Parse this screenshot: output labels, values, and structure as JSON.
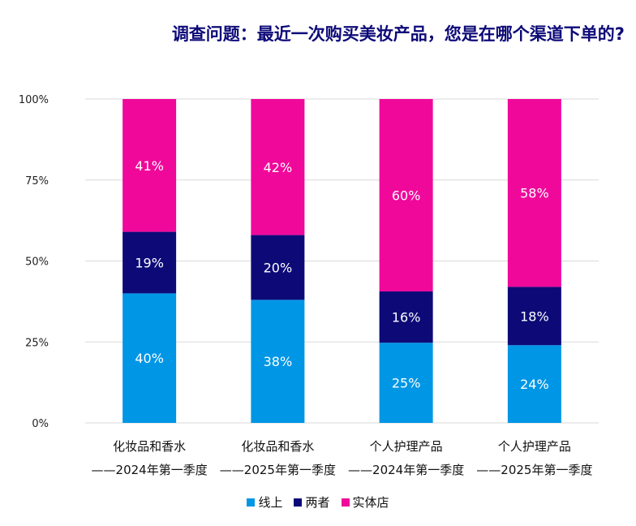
{
  "chart_data": {
    "type": "bar",
    "stacked": true,
    "percent": true,
    "title": "调查问题：最近一次购买美妆产品，您是在哪个渠道下单的?",
    "categories": [
      [
        "化妆品和香水",
        "——2024年第一季度"
      ],
      [
        "化妆品和香水",
        "——2025年第一季度"
      ],
      [
        "个人护理产品",
        "——2024年第一季度"
      ],
      [
        "个人护理产品",
        "——2025年第一季度"
      ]
    ],
    "series": [
      {
        "name": "线上",
        "color": "#0096e6",
        "values": [
          40,
          38,
          25,
          24
        ]
      },
      {
        "name": "两者",
        "color": "#0d0a78",
        "values": [
          19,
          20,
          16,
          18
        ]
      },
      {
        "name": "实体店",
        "color": "#f0089b",
        "values": [
          41,
          42,
          60,
          58
        ]
      }
    ],
    "ylim": [
      0,
      100
    ],
    "yticks": [
      "0%",
      "25%",
      "50%",
      "75%",
      "100%"
    ],
    "grid": true,
    "legend": "bottom"
  }
}
